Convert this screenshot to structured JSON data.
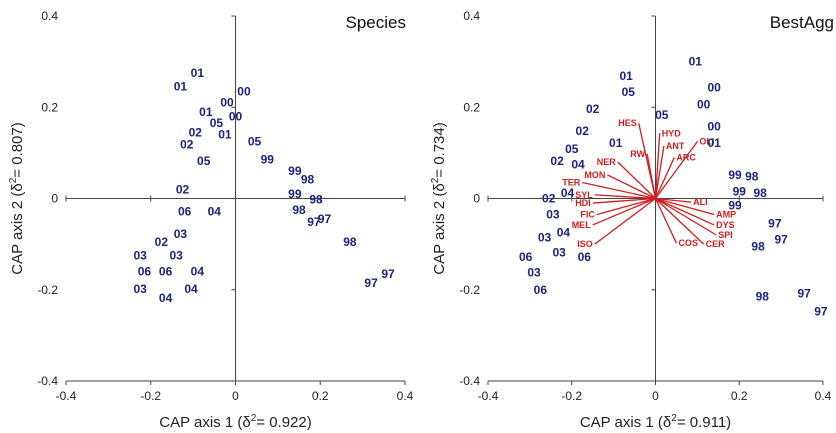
{
  "colors": {
    "points": "#1a237e",
    "vectors": "#cc1f1f",
    "axes": "#444444"
  },
  "chart_data": [
    {
      "type": "scatter",
      "title": "Species",
      "xlabel": "CAP axis 1 (δ²= 0.922)",
      "ylabel": "CAP axis 2 (δ²= 0.807)",
      "xlabel_parts": {
        "pre": "CAP axis 1 (δ",
        "sup": "2",
        "post": "= 0.922)"
      },
      "ylabel_parts": {
        "pre": "CAP axis 2 (δ",
        "sup": "2",
        "post": "= 0.807)"
      },
      "xlim": [
        -0.4,
        0.4
      ],
      "ylim": [
        -0.4,
        0.4
      ],
      "xticks": [
        "-0.4",
        "-0.2",
        "0",
        "0.2",
        "0.4"
      ],
      "yticks": [
        "-0.4",
        "-0.2",
        "0",
        "0.2",
        "0.4"
      ],
      "points": [
        {
          "label": "01",
          "x": -0.09,
          "y": 0.275
        },
        {
          "label": "01",
          "x": -0.13,
          "y": 0.245
        },
        {
          "label": "00",
          "x": 0.02,
          "y": 0.235
        },
        {
          "label": "00",
          "x": -0.02,
          "y": 0.21
        },
        {
          "label": "01",
          "x": -0.07,
          "y": 0.19
        },
        {
          "label": "00",
          "x": 0.0,
          "y": 0.18
        },
        {
          "label": "05",
          "x": -0.045,
          "y": 0.165
        },
        {
          "label": "02",
          "x": -0.095,
          "y": 0.145
        },
        {
          "label": "01",
          "x": -0.025,
          "y": 0.14
        },
        {
          "label": "02",
          "x": -0.115,
          "y": 0.118
        },
        {
          "label": "05",
          "x": 0.045,
          "y": 0.125
        },
        {
          "label": "05",
          "x": -0.075,
          "y": 0.082
        },
        {
          "label": "99",
          "x": 0.075,
          "y": 0.085
        },
        {
          "label": "99",
          "x": 0.14,
          "y": 0.06
        },
        {
          "label": "98",
          "x": 0.17,
          "y": 0.042
        },
        {
          "label": "99",
          "x": 0.14,
          "y": 0.01
        },
        {
          "label": "98",
          "x": 0.19,
          "y": -0.002
        },
        {
          "label": "98",
          "x": 0.15,
          "y": -0.025
        },
        {
          "label": "97",
          "x": 0.21,
          "y": -0.045
        },
        {
          "label": "97",
          "x": 0.185,
          "y": -0.052
        },
        {
          "label": "02",
          "x": -0.125,
          "y": 0.02
        },
        {
          "label": "06",
          "x": -0.12,
          "y": -0.028
        },
        {
          "label": "04",
          "x": -0.05,
          "y": -0.028
        },
        {
          "label": "03",
          "x": -0.13,
          "y": -0.078
        },
        {
          "label": "02",
          "x": -0.175,
          "y": -0.095
        },
        {
          "label": "98",
          "x": 0.27,
          "y": -0.095
        },
        {
          "label": "03",
          "x": -0.225,
          "y": -0.125
        },
        {
          "label": "03",
          "x": -0.14,
          "y": -0.125
        },
        {
          "label": "06",
          "x": -0.215,
          "y": -0.16
        },
        {
          "label": "06",
          "x": -0.165,
          "y": -0.16
        },
        {
          "label": "04",
          "x": -0.09,
          "y": -0.16
        },
        {
          "label": "03",
          "x": -0.225,
          "y": -0.198
        },
        {
          "label": "04",
          "x": -0.105,
          "y": -0.198
        },
        {
          "label": "04",
          "x": -0.165,
          "y": -0.218
        },
        {
          "label": "97",
          "x": 0.36,
          "y": -0.165
        },
        {
          "label": "97",
          "x": 0.32,
          "y": -0.185
        }
      ]
    },
    {
      "type": "scatter",
      "title": "BestAgg",
      "xlabel": "CAP axis 1 (δ²= 0.911)",
      "ylabel": "CAP axis 2 (δ²= 0.734)",
      "xlabel_parts": {
        "pre": "CAP axis 1 (δ",
        "sup": "2",
        "post": "= 0.911)"
      },
      "ylabel_parts": {
        "pre": "CAP axis 2 (δ",
        "sup": "2",
        "post": "= 0.734)"
      },
      "xlim": [
        -0.4,
        0.4
      ],
      "ylim": [
        -0.4,
        0.4
      ],
      "xticks": [
        "-0.4",
        "-0.2",
        "0",
        "0.2",
        "0.4"
      ],
      "yticks": [
        "-0.4",
        "-0.2",
        "0",
        "0.2",
        "0.4"
      ],
      "points": [
        {
          "label": "01",
          "x": 0.095,
          "y": 0.3
        },
        {
          "label": "01",
          "x": -0.07,
          "y": 0.268
        },
        {
          "label": "00",
          "x": 0.14,
          "y": 0.243
        },
        {
          "label": "05",
          "x": -0.065,
          "y": 0.233
        },
        {
          "label": "00",
          "x": 0.115,
          "y": 0.206
        },
        {
          "label": "02",
          "x": -0.15,
          "y": 0.196
        },
        {
          "label": "05",
          "x": 0.015,
          "y": 0.183
        },
        {
          "label": "00",
          "x": 0.14,
          "y": 0.158
        },
        {
          "label": "02",
          "x": -0.175,
          "y": 0.148
        },
        {
          "label": "01",
          "x": 0.14,
          "y": 0.122
        },
        {
          "label": "01",
          "x": -0.095,
          "y": 0.122
        },
        {
          "label": "05",
          "x": -0.2,
          "y": 0.108
        },
        {
          "label": "02",
          "x": -0.235,
          "y": 0.082
        },
        {
          "label": "04",
          "x": -0.185,
          "y": 0.075
        },
        {
          "label": "99",
          "x": 0.19,
          "y": 0.052
        },
        {
          "label": "98",
          "x": 0.23,
          "y": 0.048
        },
        {
          "label": "04",
          "x": -0.21,
          "y": 0.012
        },
        {
          "label": "99",
          "x": 0.2,
          "y": 0.015
        },
        {
          "label": "98",
          "x": 0.25,
          "y": 0.012
        },
        {
          "label": "02",
          "x": -0.255,
          "y": 0.0
        },
        {
          "label": "99",
          "x": 0.19,
          "y": -0.015
        },
        {
          "label": "03",
          "x": -0.245,
          "y": -0.035
        },
        {
          "label": "97",
          "x": 0.285,
          "y": -0.055
        },
        {
          "label": "04",
          "x": -0.22,
          "y": -0.075
        },
        {
          "label": "03",
          "x": -0.265,
          "y": -0.085
        },
        {
          "label": "97",
          "x": 0.3,
          "y": -0.09
        },
        {
          "label": "98",
          "x": 0.245,
          "y": -0.105
        },
        {
          "label": "03",
          "x": -0.23,
          "y": -0.118
        },
        {
          "label": "06",
          "x": -0.31,
          "y": -0.128
        },
        {
          "label": "06",
          "x": -0.17,
          "y": -0.128
        },
        {
          "label": "03",
          "x": -0.29,
          "y": -0.162
        },
        {
          "label": "06",
          "x": -0.275,
          "y": -0.2
        },
        {
          "label": "98",
          "x": 0.255,
          "y": -0.215
        },
        {
          "label": "97",
          "x": 0.355,
          "y": -0.208
        },
        {
          "label": "97",
          "x": 0.395,
          "y": -0.248
        }
      ],
      "vectors": [
        {
          "label": "HES",
          "x": -0.04,
          "y": 0.165
        },
        {
          "label": "HYD",
          "x": 0.01,
          "y": 0.143
        },
        {
          "label": "OLI",
          "x": 0.1,
          "y": 0.125
        },
        {
          "label": "ANT",
          "x": 0.02,
          "y": 0.115
        },
        {
          "label": "RW",
          "x": -0.02,
          "y": 0.098
        },
        {
          "label": "ARC",
          "x": 0.045,
          "y": 0.09
        },
        {
          "label": "NER",
          "x": -0.09,
          "y": 0.08
        },
        {
          "label": "MON",
          "x": -0.115,
          "y": 0.052
        },
        {
          "label": "TER",
          "x": -0.175,
          "y": 0.035
        },
        {
          "label": "SYL",
          "x": -0.145,
          "y": 0.008
        },
        {
          "label": "ALI",
          "x": 0.085,
          "y": -0.008
        },
        {
          "label": "HDI",
          "x": -0.15,
          "y": -0.01
        },
        {
          "label": "FIC",
          "x": -0.14,
          "y": -0.035
        },
        {
          "label": "AMP",
          "x": 0.14,
          "y": -0.035
        },
        {
          "label": "MEL",
          "x": -0.15,
          "y": -0.058
        },
        {
          "label": "DYS",
          "x": 0.14,
          "y": -0.058
        },
        {
          "label": "SPI",
          "x": 0.145,
          "y": -0.08
        },
        {
          "label": "ISO",
          "x": -0.145,
          "y": -0.1
        },
        {
          "label": "COS",
          "x": 0.05,
          "y": -0.098
        },
        {
          "label": "CER",
          "x": 0.115,
          "y": -0.1
        }
      ]
    }
  ]
}
